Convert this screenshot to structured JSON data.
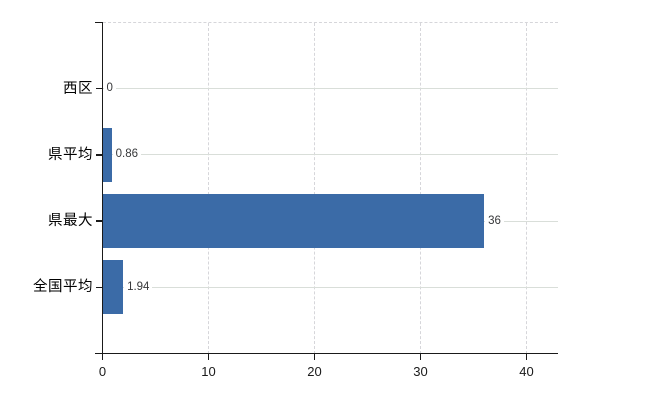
{
  "chart_data": {
    "type": "bar",
    "orientation": "horizontal",
    "title": "",
    "xlabel": "",
    "ylabel": "",
    "categories": [
      "西区",
      "県平均",
      "県最大",
      "全国平均"
    ],
    "values": [
      0,
      0.86,
      36,
      1.94
    ],
    "value_labels": [
      "0",
      "0.86",
      "36",
      "1.94"
    ],
    "x_ticks": [
      "0",
      "10",
      "20",
      "30",
      "40"
    ],
    "x_tick_values": [
      0,
      10,
      20,
      30,
      40
    ],
    "x_range": [
      0,
      43
    ],
    "grid": true,
    "legend": false,
    "colors": {
      "bar": "#3b6ba7",
      "axis": "#1a1a1a",
      "grid_horizontal": "#d9ded9",
      "grid_vertical": "#d6d6da",
      "category_text": "#000000",
      "value_text": "#37383a",
      "tick_text": "#1a1a1a",
      "background": "#ffffff"
    }
  }
}
